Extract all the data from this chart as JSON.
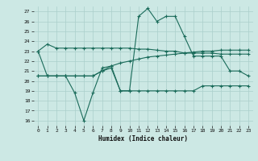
{
  "title": "",
  "xlabel": "Humidex (Indice chaleur)",
  "ylabel": "",
  "bg_color": "#cce8e4",
  "grid_color": "#aacfcb",
  "line_color": "#1a6b5a",
  "xlim": [
    -0.5,
    23.5
  ],
  "ylim": [
    15.5,
    27.5
  ],
  "yticks": [
    16,
    17,
    18,
    19,
    20,
    21,
    22,
    23,
    24,
    25,
    26,
    27
  ],
  "xticks": [
    0,
    1,
    2,
    3,
    4,
    5,
    6,
    7,
    8,
    9,
    10,
    11,
    12,
    13,
    14,
    15,
    16,
    17,
    18,
    19,
    20,
    21,
    22,
    23
  ],
  "series1_x": [
    0,
    1,
    2,
    3,
    4,
    5,
    6,
    7,
    8,
    9,
    10,
    11,
    12,
    13,
    14,
    15,
    16,
    17,
    18,
    19,
    20,
    21,
    22,
    23
  ],
  "series1_y": [
    23.0,
    23.7,
    23.3,
    23.3,
    23.3,
    23.3,
    23.3,
    23.3,
    23.3,
    23.3,
    23.3,
    23.2,
    23.2,
    23.1,
    23.0,
    23.0,
    22.8,
    22.8,
    22.8,
    22.8,
    22.7,
    22.7,
    22.7,
    22.7
  ],
  "series2_x": [
    0,
    1,
    2,
    3,
    4,
    5,
    6,
    7,
    8,
    9,
    10,
    11,
    12,
    13,
    14,
    15,
    16,
    17,
    18,
    19,
    20,
    21,
    22,
    23
  ],
  "series2_y": [
    23.0,
    20.5,
    20.5,
    20.5,
    18.8,
    16.0,
    18.8,
    21.3,
    21.5,
    19.0,
    19.0,
    26.5,
    27.3,
    26.0,
    26.5,
    26.5,
    24.5,
    22.5,
    22.5,
    22.5,
    22.5,
    21.0,
    21.0,
    20.5
  ],
  "series3_x": [
    0,
    1,
    2,
    3,
    4,
    5,
    6,
    7,
    8,
    9,
    10,
    11,
    12,
    13,
    14,
    15,
    16,
    17,
    18,
    19,
    20,
    21,
    22,
    23
  ],
  "series3_y": [
    20.5,
    20.5,
    20.5,
    20.5,
    20.5,
    20.5,
    20.5,
    21.0,
    21.3,
    19.0,
    19.0,
    19.0,
    19.0,
    19.0,
    19.0,
    19.0,
    19.0,
    19.0,
    19.5,
    19.5,
    19.5,
    19.5,
    19.5,
    19.5
  ],
  "series4_x": [
    0,
    1,
    2,
    3,
    4,
    5,
    6,
    7,
    8,
    9,
    10,
    11,
    12,
    13,
    14,
    15,
    16,
    17,
    18,
    19,
    20,
    21,
    22,
    23
  ],
  "series4_y": [
    20.5,
    20.5,
    20.5,
    20.5,
    20.5,
    20.5,
    20.5,
    21.0,
    21.5,
    21.8,
    22.0,
    22.2,
    22.4,
    22.5,
    22.6,
    22.7,
    22.8,
    22.9,
    23.0,
    23.0,
    23.1,
    23.1,
    23.1,
    23.1
  ]
}
